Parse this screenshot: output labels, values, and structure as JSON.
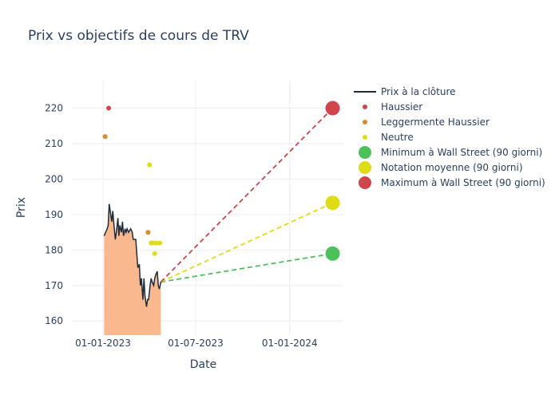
{
  "chart_data": {
    "type": "line",
    "title": "Prix vs objectifs de cours de TRV",
    "xlabel": "Date",
    "ylabel": "Prix",
    "xlim": [
      "2022-11-01",
      "2024-04-15"
    ],
    "ylim": [
      156,
      228
    ],
    "x_ticks": [
      {
        "date": "2023-01-01",
        "label": "01-01-2023"
      },
      {
        "date": "2023-07-01",
        "label": "01-07-2023"
      },
      {
        "date": "2024-01-01",
        "label": "01-01-2024"
      }
    ],
    "y_ticks": [
      160,
      170,
      180,
      190,
      200,
      210,
      220
    ],
    "grid": true,
    "legend_position": "top-right",
    "close_price": {
      "name": "Prix à la clôture",
      "color": "#1f2d3d",
      "fill_color": "#f9b88e",
      "points": [
        [
          "2023-01-03",
          184
        ],
        [
          "2023-01-06",
          185
        ],
        [
          "2023-01-09",
          186
        ],
        [
          "2023-01-11",
          187
        ],
        [
          "2023-01-13",
          193
        ],
        [
          "2023-01-16",
          190
        ],
        [
          "2023-01-18",
          188
        ],
        [
          "2023-01-20",
          191
        ],
        [
          "2023-01-23",
          186
        ],
        [
          "2023-01-25",
          183
        ],
        [
          "2023-01-27",
          185
        ],
        [
          "2023-01-30",
          189
        ],
        [
          "2023-02-01",
          184
        ],
        [
          "2023-02-03",
          187
        ],
        [
          "2023-02-06",
          185
        ],
        [
          "2023-02-08",
          188
        ],
        [
          "2023-02-10",
          184
        ],
        [
          "2023-02-13",
          186
        ],
        [
          "2023-02-15",
          185
        ],
        [
          "2023-02-17",
          186
        ],
        [
          "2023-02-20",
          185
        ],
        [
          "2023-02-24",
          186
        ],
        [
          "2023-02-27",
          185
        ],
        [
          "2023-03-01",
          183
        ],
        [
          "2023-03-06",
          183
        ],
        [
          "2023-03-08",
          179
        ],
        [
          "2023-03-10",
          175
        ],
        [
          "2023-03-13",
          176
        ],
        [
          "2023-03-15",
          170
        ],
        [
          "2023-03-17",
          172
        ],
        [
          "2023-03-20",
          166
        ],
        [
          "2023-03-22",
          172
        ],
        [
          "2023-03-24",
          167
        ],
        [
          "2023-03-27",
          164
        ],
        [
          "2023-03-29",
          166
        ],
        [
          "2023-03-31",
          166
        ],
        [
          "2023-04-03",
          170
        ],
        [
          "2023-04-05",
          172
        ],
        [
          "2023-04-07",
          171
        ],
        [
          "2023-04-10",
          170
        ],
        [
          "2023-04-12",
          172
        ],
        [
          "2023-04-14",
          173
        ],
        [
          "2023-04-17",
          174
        ],
        [
          "2023-04-19",
          170
        ],
        [
          "2023-04-21",
          169
        ],
        [
          "2023-04-24",
          171
        ]
      ]
    },
    "analyst_ratings": [
      {
        "name": "Haussier",
        "color": "#d0454c",
        "points": [
          [
            "2023-01-12",
            220
          ]
        ]
      },
      {
        "name": "Leggermente Haussier",
        "color": "#d88a30",
        "points": [
          [
            "2023-01-05",
            212
          ],
          [
            "2023-03-30",
            185
          ]
        ]
      },
      {
        "name": "Neutre",
        "color": "#dedc14",
        "points": [
          [
            "2023-04-02",
            204
          ],
          [
            "2023-04-05",
            182
          ],
          [
            "2023-04-08",
            182
          ],
          [
            "2023-04-12",
            179
          ],
          [
            "2023-04-15",
            182
          ],
          [
            "2023-04-22",
            182
          ]
        ]
      }
    ],
    "targets": [
      {
        "name": "Minimum à Wall Street (90 giorni)",
        "color": "#4cc15a",
        "start": [
          "2023-04-24",
          171
        ],
        "end": [
          "2024-03-25",
          179
        ]
      },
      {
        "name": "Notation moyenne (90 giorni)",
        "color": "#dedc14",
        "start": [
          "2023-04-24",
          171
        ],
        "end": [
          "2024-03-25",
          193.3
        ]
      },
      {
        "name": "Maximum à Wall Street (90 giorni)",
        "color": "#d0454c",
        "start": [
          "2023-04-24",
          171
        ],
        "end": [
          "2024-03-25",
          220
        ]
      }
    ]
  }
}
